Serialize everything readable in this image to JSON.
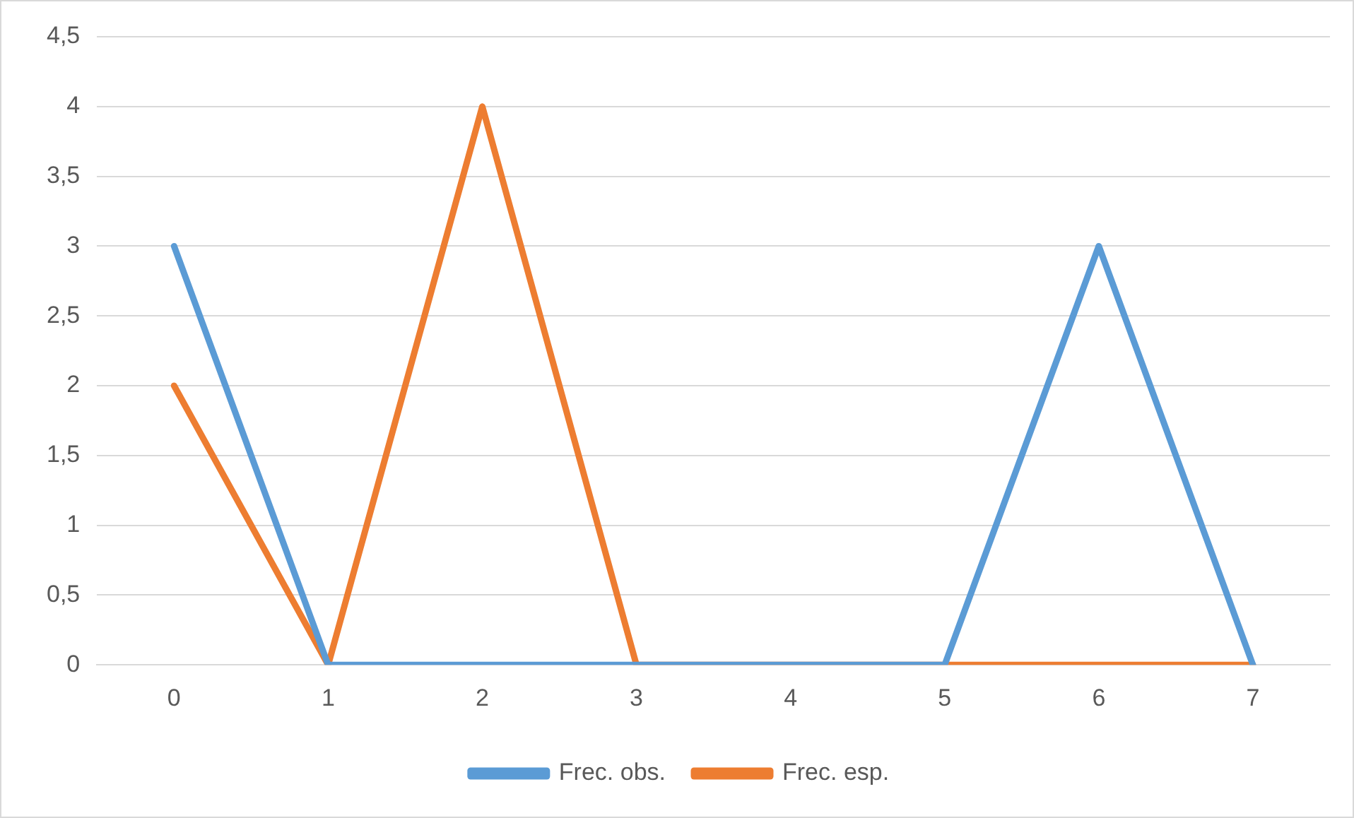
{
  "chart_data": {
    "type": "line",
    "categories": [
      "0",
      "1",
      "2",
      "3",
      "4",
      "5",
      "6",
      "7"
    ],
    "series": [
      {
        "name": "Frec. obs.",
        "color": "#5b9bd5",
        "values": [
          3,
          0,
          0,
          0,
          0,
          0,
          3,
          0
        ]
      },
      {
        "name": "Frec. esp.",
        "color": "#ed7d31",
        "values": [
          2,
          0,
          4,
          0,
          0,
          0,
          0,
          0
        ]
      }
    ],
    "ylim": [
      0,
      4.5
    ],
    "yticks": [
      0,
      {
        "value": 0.5,
        "label": "0,5"
      },
      1,
      {
        "value": 1.5,
        "label": "1,5"
      },
      2,
      {
        "value": 2.5,
        "label": "2,5"
      },
      3,
      {
        "value": 3.5,
        "label": "3,5"
      },
      4,
      {
        "value": 4.5,
        "label": "4,5"
      }
    ],
    "grid": "y",
    "legend": "bottom",
    "marker": "none",
    "line_style": "solid"
  }
}
